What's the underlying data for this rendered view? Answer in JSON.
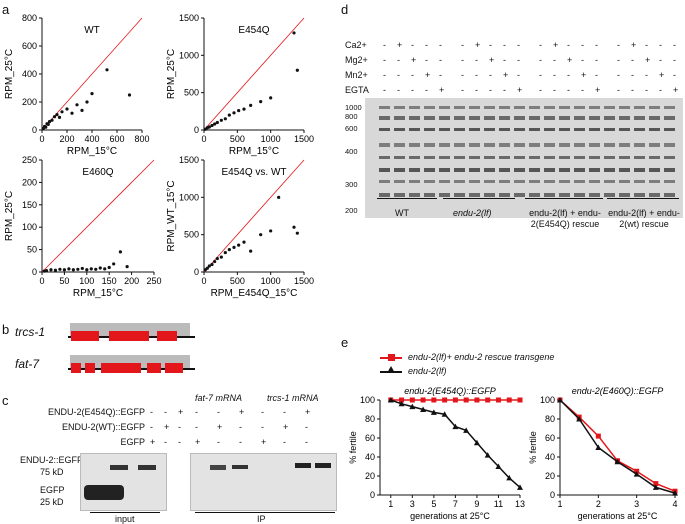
{
  "panels": {
    "a": "a",
    "b": "b",
    "c": "c",
    "d": "d",
    "e": "e"
  },
  "chart_data": [
    {
      "type": "scatter",
      "title": "WT",
      "xlabel": "RPM_15°C",
      "ylabel": "RPM_25°C",
      "xlim": [
        0,
        800
      ],
      "ylim": [
        0,
        800
      ],
      "xticks": [
        "0",
        "200",
        "400",
        "600",
        "800"
      ],
      "yticks": [
        "0",
        "200",
        "400",
        "600",
        "800"
      ],
      "series": [
        {
          "name": "genes",
          "x": [
            10,
            20,
            30,
            40,
            50,
            60,
            80,
            100,
            120,
            140,
            160,
            200,
            240,
            280,
            320,
            360,
            400,
            520,
            700
          ],
          "y": [
            10,
            25,
            20,
            45,
            40,
            60,
            70,
            95,
            110,
            90,
            130,
            150,
            120,
            180,
            140,
            200,
            260,
            430,
            250
          ]
        }
      ],
      "reference_line": "y=x"
    },
    {
      "type": "scatter",
      "title": "E454Q",
      "xlabel": "RPM_15°C",
      "ylabel": "RPM_25°C",
      "xlim": [
        0,
        1500
      ],
      "ylim": [
        0,
        1500
      ],
      "xticks": [
        "0",
        "500",
        "1000",
        "1500"
      ],
      "yticks": [
        "0",
        "500",
        "1000",
        "1500"
      ],
      "series": [
        {
          "name": "genes",
          "x": [
            20,
            50,
            80,
            120,
            160,
            200,
            260,
            320,
            380,
            450,
            520,
            600,
            700,
            850,
            1000,
            1350,
            1400
          ],
          "y": [
            10,
            30,
            40,
            60,
            80,
            100,
            130,
            150,
            200,
            230,
            260,
            280,
            330,
            380,
            430,
            1300,
            800
          ]
        }
      ],
      "reference_line": "y=x"
    },
    {
      "type": "scatter",
      "title": "E460Q",
      "xlabel": "RPM_15°C",
      "ylabel": "RPM_25°C",
      "xlim": [
        0,
        250
      ],
      "ylim": [
        0,
        250
      ],
      "xticks": [
        "0",
        "50",
        "100",
        "150",
        "200",
        "250"
      ],
      "yticks": [
        "0",
        "50",
        "100",
        "150",
        "200",
        "250"
      ],
      "series": [
        {
          "name": "genes",
          "x": [
            5,
            10,
            20,
            30,
            40,
            50,
            60,
            70,
            80,
            90,
            100,
            110,
            120,
            130,
            140,
            150,
            160,
            175,
            190
          ],
          "y": [
            2,
            3,
            5,
            4,
            6,
            5,
            7,
            5,
            6,
            8,
            5,
            7,
            6,
            9,
            7,
            10,
            18,
            45,
            12
          ]
        }
      ],
      "reference_line": "y=x"
    },
    {
      "type": "scatter",
      "title": "E454Q vs. WT",
      "xlabel": "RPM_E454Q_15°C",
      "ylabel": "RPM_WT_15°C",
      "xlim": [
        0,
        1500
      ],
      "ylim": [
        0,
        1500
      ],
      "xticks": [
        "0",
        "500",
        "1000",
        "1500"
      ],
      "yticks": [
        "0",
        "500",
        "1000",
        "1500"
      ],
      "series": [
        {
          "name": "genes",
          "x": [
            20,
            50,
            80,
            120,
            160,
            200,
            260,
            320,
            380,
            450,
            520,
            600,
            700,
            850,
            1000,
            1120,
            1350,
            1400
          ],
          "y": [
            30,
            50,
            80,
            100,
            140,
            180,
            200,
            260,
            300,
            330,
            360,
            400,
            280,
            500,
            550,
            1000,
            600,
            520
          ]
        }
      ],
      "reference_line": "y=x"
    },
    {
      "type": "line",
      "title": "endu-2(E454Q)::EGFP",
      "xlabel": "generations at 25°C",
      "ylabel": "% fertile",
      "xlim": [
        0,
        13
      ],
      "ylim": [
        0,
        100
      ],
      "xticks": [
        "1",
        "3",
        "5",
        "7",
        "9",
        "11",
        "13"
      ],
      "yticks": [
        "0",
        "20",
        "40",
        "60",
        "80",
        "100"
      ],
      "series": [
        {
          "name": "endu-2(lf)+ endu-2 rescue transgene",
          "color": "#e3161b",
          "marker": "square",
          "x": [
            1,
            2,
            3,
            4,
            5,
            6,
            7,
            8,
            9,
            10,
            11,
            12,
            13
          ],
          "y": [
            100,
            100,
            100,
            100,
            100,
            100,
            100,
            100,
            100,
            100,
            100,
            100,
            100
          ]
        },
        {
          "name": "endu-2(lf)",
          "color": "#111111",
          "marker": "triangle",
          "x": [
            1,
            2,
            3,
            4,
            5,
            6,
            7,
            8,
            9,
            10,
            11,
            12,
            13
          ],
          "y": [
            100,
            96,
            93,
            90,
            87,
            85,
            72,
            68,
            55,
            42,
            30,
            18,
            8
          ]
        }
      ]
    },
    {
      "type": "line",
      "title": "endu-2(E460Q)::EGFP",
      "xlabel": "generations at 25°C",
      "ylabel": "% fertile",
      "xlim": [
        1,
        4
      ],
      "ylim": [
        0,
        100
      ],
      "xticks": [
        "1",
        "2",
        "3",
        "4"
      ],
      "yticks": [
        "0",
        "20",
        "40",
        "60",
        "80",
        "100"
      ],
      "series": [
        {
          "name": "endu-2(lf)+ endu-2 rescue transgene",
          "color": "#e3161b",
          "marker": "square",
          "x": [
            1,
            1.5,
            2,
            2.5,
            3,
            3.5,
            4
          ],
          "y": [
            100,
            82,
            62,
            36,
            25,
            12,
            4
          ]
        },
        {
          "name": "endu-2(lf)",
          "color": "#111111",
          "marker": "triangle",
          "x": [
            1,
            1.5,
            2,
            2.5,
            3,
            3.5,
            4
          ],
          "y": [
            100,
            80,
            50,
            35,
            22,
            8,
            2
          ]
        }
      ]
    }
  ],
  "panel_b": {
    "genes": [
      "trcs-1",
      "fat-7"
    ]
  },
  "panel_c": {
    "row_labels": [
      "ENDU-2(E454Q)::EGFP",
      "ENDU-2(WT)::EGFP",
      "EGFP"
    ],
    "signs": [
      [
        "-",
        "-",
        "+"
      ],
      [
        "-",
        "+",
        "-"
      ],
      [
        "+",
        "-",
        "-"
      ]
    ],
    "ip_signs": [
      [
        "-",
        "-",
        "+",
        "-",
        "-",
        "+"
      ],
      [
        "-",
        "+",
        "-",
        "-",
        "+",
        "-"
      ],
      [
        "+",
        "-",
        "-",
        "+",
        "-",
        "-"
      ]
    ],
    "mrna_labels": [
      "fat-7 mRNA",
      "trcs-1 mRNA"
    ],
    "band_labels": [
      "ENDU-2::EGFP",
      "75 kD",
      "EGFP",
      "25 kD"
    ],
    "bottom_labels": [
      "input",
      "IP"
    ]
  },
  "panel_d": {
    "ions": [
      "Ca2+",
      "Mg2+",
      "Mn2+",
      "EGTA"
    ],
    "ion_signs": [
      "- + - - -",
      "- - + - -",
      "- - - + -",
      "- - - - +"
    ],
    "size_markers": [
      "1000",
      "800",
      "600",
      "400",
      "300",
      "200"
    ],
    "groups": [
      "WT",
      "endu-2(lf)",
      "endu-2(lf) + endu-2(E454Q) rescue",
      "endu-2(lf) + endu-2(wt) rescue"
    ]
  },
  "legend_e": [
    "endu-2(lf)+ endu-2 rescue transgene",
    "endu-2(lf)"
  ]
}
